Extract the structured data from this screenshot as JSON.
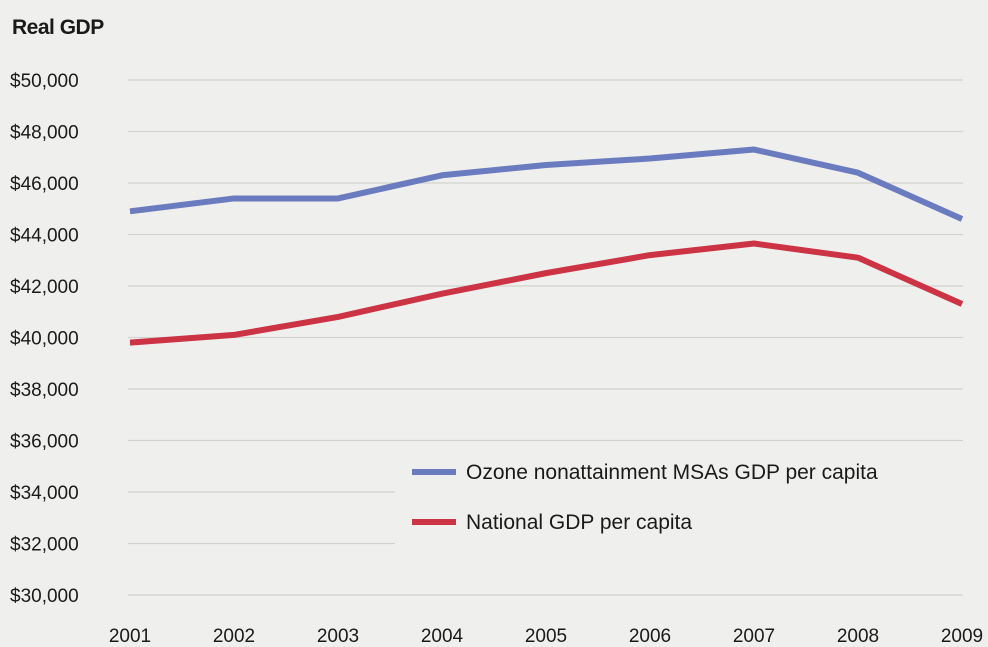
{
  "chart_data": {
    "type": "line",
    "title": "",
    "xlabel": "",
    "ylabel": "Real GDP",
    "categories": [
      "2001",
      "2002",
      "2003",
      "2004",
      "2005",
      "2006",
      "2007",
      "2008",
      "2009"
    ],
    "y_tick_labels": [
      "$30,000",
      "$32,000",
      "$34,000",
      "$36,000",
      "$38,000",
      "$40,000",
      "$42,000",
      "$44,000",
      "$46,000",
      "$48,000",
      "$50,000"
    ],
    "ylim": [
      30000,
      50000
    ],
    "grid": true,
    "legend_position": "lower-right",
    "series": [
      {
        "name": "Ozone nonattainment MSAs GDP per capita",
        "color": "#6b7bbf",
        "values": [
          44900,
          45400,
          45400,
          46300,
          46700,
          46950,
          47300,
          46400,
          44600
        ]
      },
      {
        "name": "National GDP per capita",
        "color": "#cc3344",
        "values": [
          39800,
          40100,
          40800,
          41700,
          42500,
          43200,
          43650,
          43100,
          41300
        ]
      }
    ]
  }
}
